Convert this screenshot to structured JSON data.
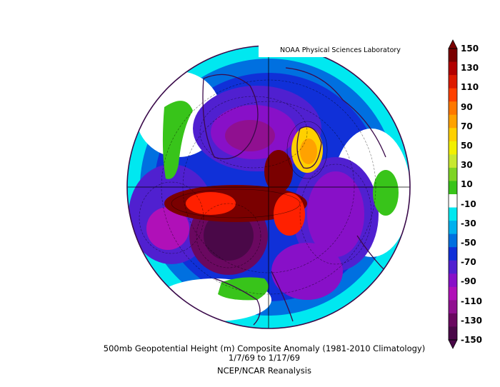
{
  "credit": "NOAA Physical Sciences Laboratory",
  "title": "500mb Geopotential Height (m) Composite Anomaly (1981-2010 Climatology)",
  "date_range": "1/7/69  to 1/17/69",
  "source": "NCEP/NCAR Reanalysis",
  "colorbar": {
    "labels": [
      "150",
      "130",
      "110",
      "90",
      "70",
      "50",
      "30",
      "10",
      "-10",
      "-30",
      "-50",
      "-70",
      "-90",
      "-110",
      "-130",
      "-150"
    ],
    "colors": [
      "#7a0000",
      "#b20000",
      "#dd1a00",
      "#ff4000",
      "#ff7800",
      "#ffa200",
      "#ffd000",
      "#f2f000",
      "#c8e830",
      "#7ed424",
      "#38c41a",
      "#ffffff",
      "#00e8f0",
      "#00b0ee",
      "#0070e0",
      "#1030d8",
      "#5020d0",
      "#8810c8",
      "#b010b8",
      "#901090",
      "#6a0860",
      "#4a0848"
    ]
  },
  "colors": {
    "max_anomaly": "#ff2000",
    "min_anomaly": "#4a0848",
    "coast_lines": "#3a0a4a"
  }
}
